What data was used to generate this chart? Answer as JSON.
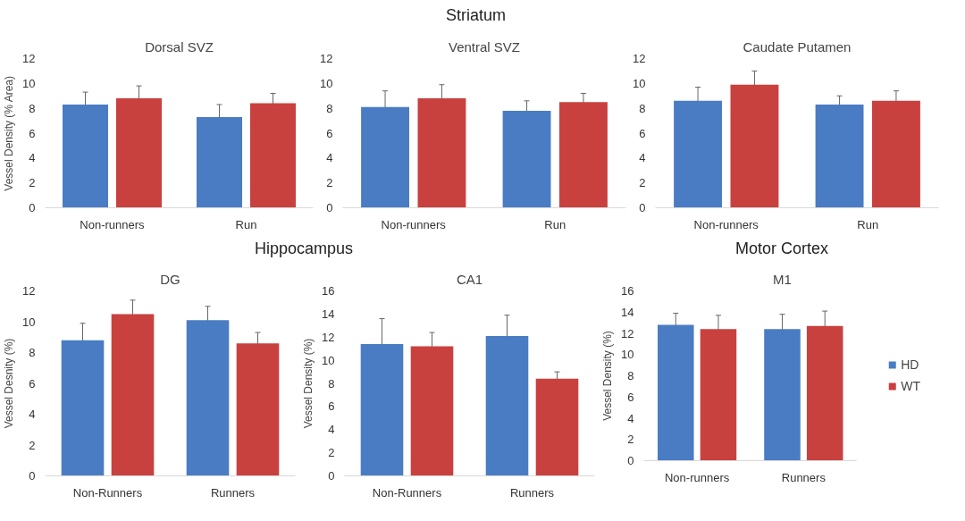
{
  "chart_data": [
    {
      "type": "bar",
      "title": "Dorsal SVZ",
      "annotations": [
        "Striatum"
      ],
      "ylabel": "Vessel Density (% Area)",
      "categories": [
        "Non-runners",
        "Run"
      ],
      "ylim": [
        0,
        12
      ],
      "yticks": [
        0,
        2,
        4,
        6,
        8,
        10,
        12
      ],
      "grid": false,
      "legend": false,
      "series": [
        {
          "color": "#4a7cc4",
          "values": [
            8.3,
            7.3
          ],
          "errors": [
            1.0,
            1.0
          ]
        },
        {
          "color": "#c9413f",
          "values": [
            8.8,
            8.4
          ],
          "errors": [
            1.0,
            0.8
          ]
        }
      ]
    },
    {
      "type": "bar",
      "title": "Ventral SVZ",
      "categories": [
        "Non-runners",
        "Run"
      ],
      "ylim": [
        0,
        12
      ],
      "yticks": [
        0,
        2,
        4,
        6,
        8,
        10,
        12
      ],
      "grid": false,
      "legend": false,
      "series": [
        {
          "color": "#4a7cc4",
          "values": [
            8.1,
            7.8
          ],
          "errors": [
            1.3,
            0.8
          ]
        },
        {
          "color": "#c9413f",
          "values": [
            8.8,
            8.5
          ],
          "errors": [
            1.1,
            0.7
          ]
        }
      ]
    },
    {
      "type": "bar",
      "title": "Caudate Putamen",
      "categories": [
        "Non-runners",
        "Run"
      ],
      "ylim": [
        0,
        12
      ],
      "yticks": [
        0,
        2,
        4,
        6,
        8,
        10,
        12
      ],
      "grid": false,
      "legend": false,
      "series": [
        {
          "color": "#4a7cc4",
          "values": [
            8.6,
            8.3
          ],
          "errors": [
            1.1,
            0.7
          ]
        },
        {
          "color": "#c9413f",
          "values": [
            9.9,
            8.6
          ],
          "errors": [
            1.1,
            0.8
          ]
        }
      ]
    },
    {
      "type": "bar",
      "title": "DG",
      "annotations": [
        "Hippocampus"
      ],
      "ylabel": "Vessel Desnity (%)",
      "categories": [
        "Non-Runners",
        "Runners"
      ],
      "ylim": [
        0,
        12
      ],
      "yticks": [
        0,
        2,
        4,
        6,
        8,
        10,
        12
      ],
      "grid": false,
      "legend": false,
      "series": [
        {
          "color": "#4a7cc4",
          "values": [
            8.8,
            10.1
          ],
          "errors": [
            1.1,
            0.9
          ]
        },
        {
          "color": "#c9413f",
          "values": [
            10.5,
            8.6
          ],
          "errors": [
            0.9,
            0.7
          ]
        }
      ]
    },
    {
      "type": "bar",
      "title": "CA1",
      "ylabel": "Vessel Density (%)",
      "categories": [
        "Non-Runners",
        "Runners"
      ],
      "ylim": [
        0,
        16
      ],
      "yticks": [
        0,
        2,
        4,
        6,
        8,
        10,
        12,
        14,
        16
      ],
      "grid": false,
      "legend": false,
      "series": [
        {
          "color": "#4a7cc4",
          "values": [
            11.4,
            12.1
          ],
          "errors": [
            2.2,
            1.8
          ]
        },
        {
          "color": "#c9413f",
          "values": [
            11.2,
            8.4
          ],
          "errors": [
            1.2,
            0.6
          ]
        }
      ]
    },
    {
      "type": "bar",
      "title": "M1",
      "annotations": [
        "Motor Cortex"
      ],
      "ylabel": "Vessel Density (%)",
      "categories": [
        "Non-runners",
        "Runners"
      ],
      "ylim": [
        0,
        16
      ],
      "yticks": [
        0,
        2,
        4,
        6,
        8,
        10,
        12,
        14,
        16
      ],
      "grid": false,
      "legend": "right",
      "series": [
        {
          "name": "HD",
          "color": "#4a7cc4",
          "values": [
            12.8,
            12.4
          ],
          "errors": [
            1.1,
            1.4
          ]
        },
        {
          "name": "WT",
          "color": "#c9413f",
          "values": [
            12.4,
            12.7
          ],
          "errors": [
            1.3,
            1.4
          ]
        }
      ]
    }
  ]
}
